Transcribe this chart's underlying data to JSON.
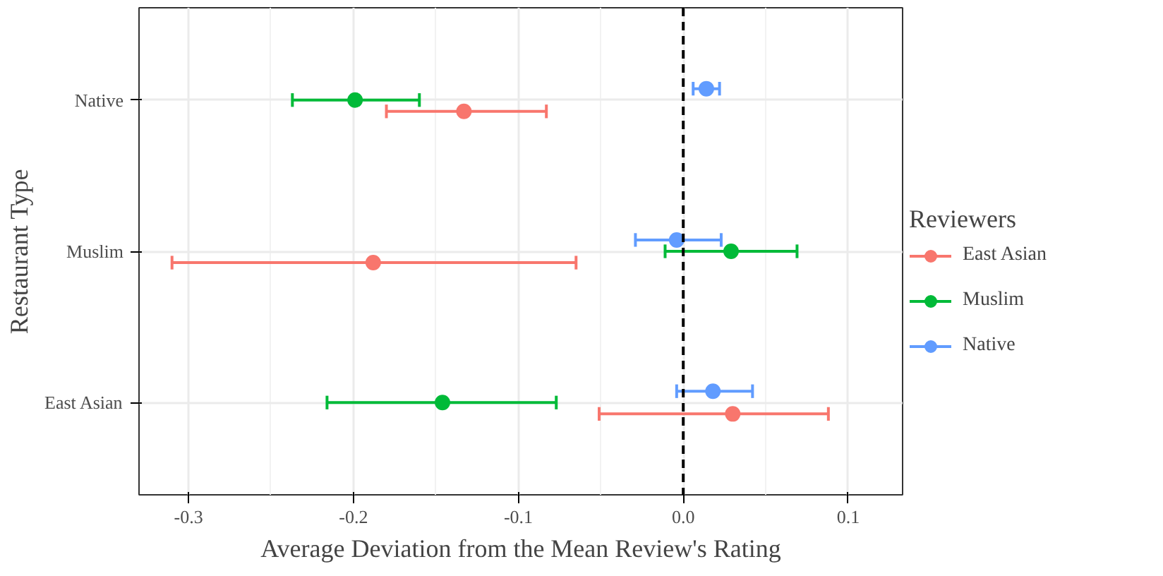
{
  "chart_data": {
    "type": "scatter",
    "orientation": "horizontal",
    "xlabel": "Average Deviation from the Mean Review's Rating",
    "ylabel": "Restaurant Type",
    "legend_title": "Reviewers",
    "legend": "right",
    "grid": true,
    "marker": "circle",
    "categories": [
      "Native",
      "Muslim",
      "East Asian"
    ],
    "xlim": [
      -0.33,
      0.133
    ],
    "xticks": [
      {
        "value": -0.3,
        "label": "-0.3"
      },
      {
        "value": -0.2,
        "label": "-0.2"
      },
      {
        "value": -0.1,
        "label": "-0.1"
      },
      {
        "value": 0.0,
        "label": "0.0"
      },
      {
        "value": 0.1,
        "label": "0.1"
      }
    ],
    "ref_lines": [
      {
        "axis": "x",
        "value": 0,
        "color": "#000000",
        "line_style": "dashed"
      }
    ],
    "series": [
      {
        "name": "East Asian",
        "color": "#f8766d",
        "values": [
          -0.133,
          -0.188,
          0.03
        ],
        "errors": [
          [
            -0.18,
            -0.083
          ],
          [
            -0.31,
            -0.065
          ],
          [
            -0.051,
            0.088
          ]
        ]
      },
      {
        "name": "Muslim",
        "color": "#00ba38",
        "values": [
          -0.199,
          0.029,
          -0.146
        ],
        "errors": [
          [
            -0.237,
            -0.16
          ],
          [
            -0.011,
            0.069
          ],
          [
            -0.216,
            -0.077
          ]
        ]
      },
      {
        "name": "Native",
        "color": "#619cff",
        "values": [
          0.014,
          -0.004,
          0.018
        ],
        "errors": [
          [
            0.006,
            0.022
          ],
          [
            -0.029,
            0.023
          ],
          [
            -0.004,
            0.042
          ]
        ]
      }
    ]
  }
}
